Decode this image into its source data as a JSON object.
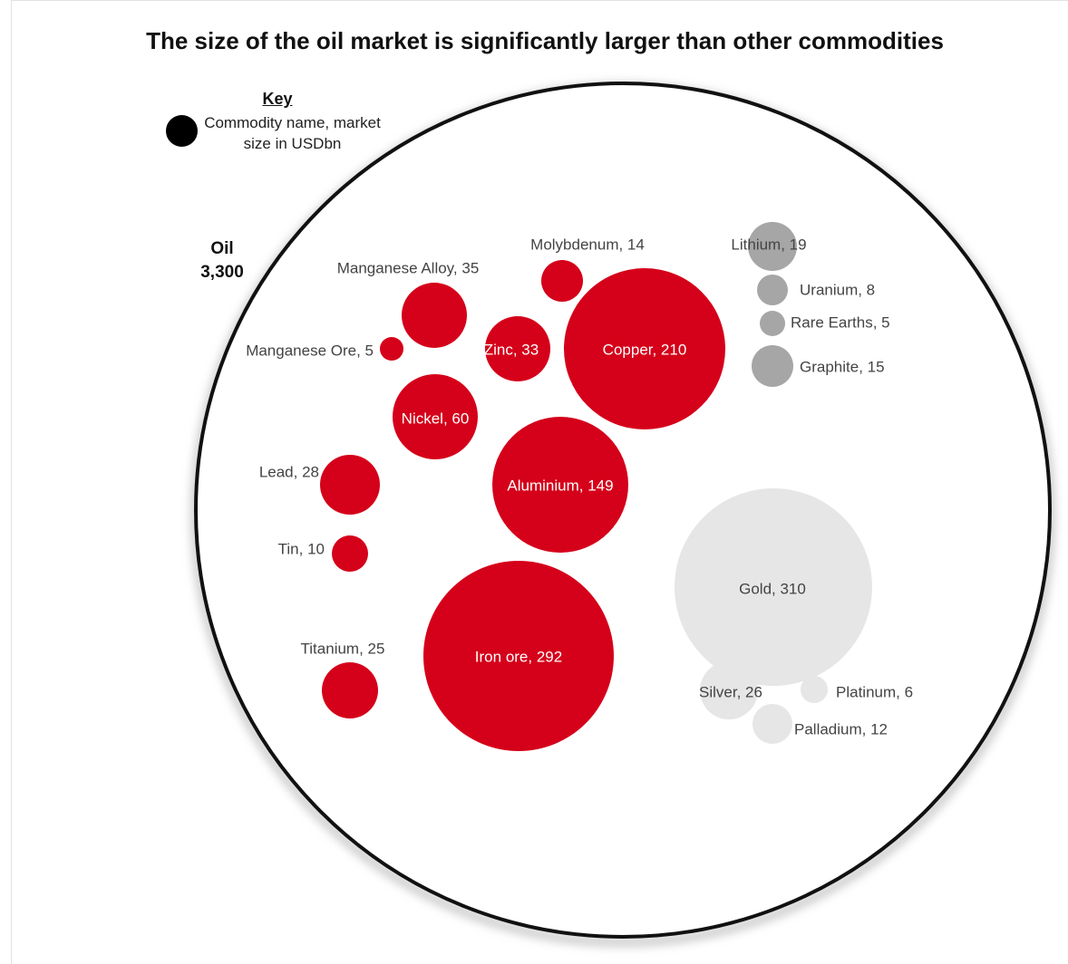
{
  "chart_data": {
    "type": "bubble",
    "title": "The size of the oil market is significantly larger than other commodities",
    "key": {
      "heading": "Key",
      "description": "Commodity name, market size in USDbn"
    },
    "container": {
      "name": "Oil",
      "value_label": "3,300",
      "value": 3300
    },
    "colors": {
      "base_metals": "#d5001a",
      "battery_metals": "#a6a6a6",
      "precious_metals": "#e6e6e6",
      "key_dot": "#000000",
      "oil_outline": "#111111"
    },
    "bubbles": [
      {
        "name": "Manganese Alloy",
        "value": 35,
        "label": "Manganese Alloy, 35",
        "group": "base_metals"
      },
      {
        "name": "Molybdenum",
        "value": 14,
        "label": "Molybdenum, 14",
        "group": "base_metals"
      },
      {
        "name": "Manganese Ore",
        "value": 5,
        "label": "Manganese Ore, 5",
        "group": "base_metals"
      },
      {
        "name": "Zinc",
        "value": 33,
        "label": "Zinc, 33",
        "group": "base_metals"
      },
      {
        "name": "Copper",
        "value": 210,
        "label": "Copper, 210",
        "group": "base_metals"
      },
      {
        "name": "Nickel",
        "value": 60,
        "label": "Nickel, 60",
        "group": "base_metals"
      },
      {
        "name": "Aluminium",
        "value": 149,
        "label": "Aluminium, 149",
        "group": "base_metals"
      },
      {
        "name": "Lead",
        "value": 28,
        "label": "Lead, 28",
        "group": "base_metals"
      },
      {
        "name": "Tin",
        "value": 10,
        "label": "Tin, 10",
        "group": "base_metals"
      },
      {
        "name": "Titanium",
        "value": 25,
        "label": "Titanium, 25",
        "group": "base_metals"
      },
      {
        "name": "Iron ore",
        "value": 292,
        "label": "Iron ore, 292",
        "group": "base_metals"
      },
      {
        "name": "Lithium",
        "value": 19,
        "label": "Lithium, 19",
        "group": "battery_metals"
      },
      {
        "name": "Uranium",
        "value": 8,
        "label": "Uranium, 8",
        "group": "battery_metals"
      },
      {
        "name": "Rare Earths",
        "value": 5,
        "label": "Rare Earths, 5",
        "group": "battery_metals"
      },
      {
        "name": "Graphite",
        "value": 15,
        "label": "Graphite, 15",
        "group": "battery_metals"
      },
      {
        "name": "Gold",
        "value": 310,
        "label": "Gold, 310",
        "group": "precious_metals"
      },
      {
        "name": "Silver",
        "value": 26,
        "label": "Silver, 26",
        "group": "precious_metals"
      },
      {
        "name": "Platinum",
        "value": 6,
        "label": "Platinum, 6",
        "group": "precious_metals"
      },
      {
        "name": "Palladium",
        "value": 12,
        "label": "Palladium, 12",
        "group": "precious_metals"
      }
    ]
  }
}
